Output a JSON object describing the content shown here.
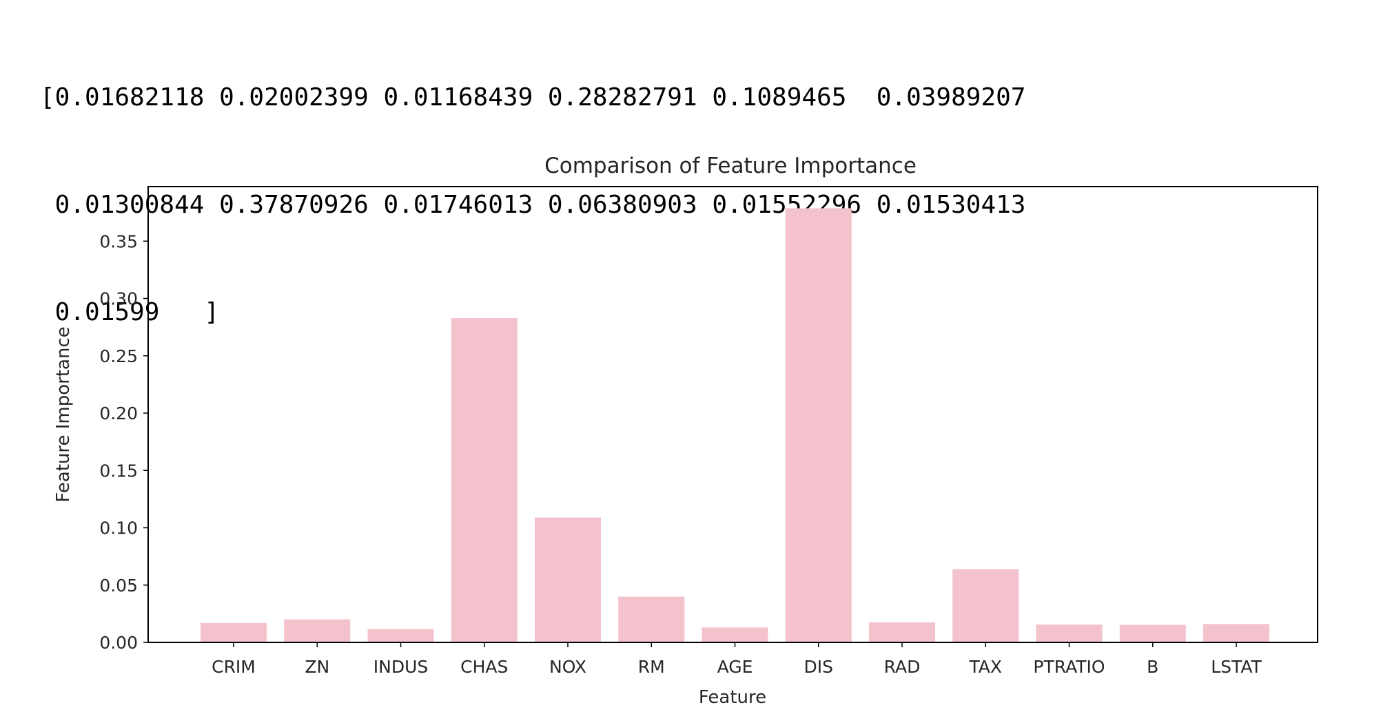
{
  "output": {
    "lines": [
      "[0.01682118 0.02002399 0.01168439 0.28282791 0.1089465  0.03989207",
      " 0.01300844 0.37870926 0.01746013 0.06380903 0.01552296 0.01530413",
      " 0.01599   ]"
    ]
  },
  "chart_data": {
    "type": "bar",
    "title": "Comparison of Feature Importance",
    "xlabel": "Feature",
    "ylabel": "Feature Importance",
    "categories": [
      "CRIM",
      "ZN",
      "INDUS",
      "CHAS",
      "NOX",
      "RM",
      "AGE",
      "DIS",
      "RAD",
      "TAX",
      "PTRATIO",
      "B",
      "LSTAT"
    ],
    "values": [
      0.01682118,
      0.02002399,
      0.01168439,
      0.28282791,
      0.1089465,
      0.03989207,
      0.01300844,
      0.37870926,
      0.01746013,
      0.06380903,
      0.01552296,
      0.01530413,
      0.01599
    ],
    "ylim": [
      0,
      0.3976
    ],
    "yticks": [
      "0.00",
      "0.05",
      "0.10",
      "0.15",
      "0.20",
      "0.25",
      "0.30",
      "0.35"
    ],
    "grid": false,
    "bar_color": "#f4c2cc"
  }
}
